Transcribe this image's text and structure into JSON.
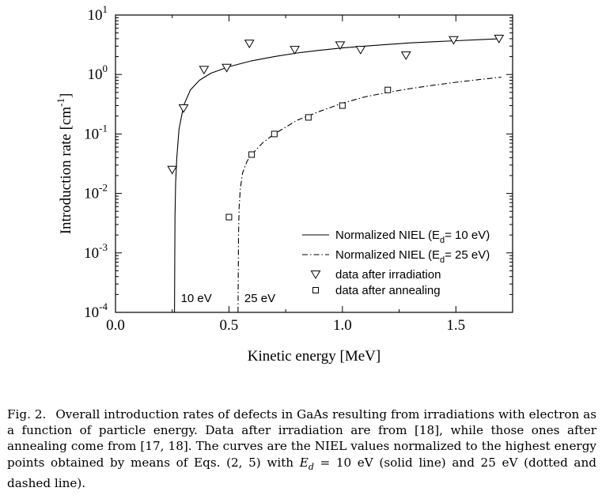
{
  "chart_data": {
    "type": "scatter",
    "xlabel": "Kinetic energy [MeV]",
    "ylabel": "Introduction rate [cm",
    "ylabel_sup": "-1",
    "ylabel_end": "]",
    "xlim": [
      0.0,
      1.75
    ],
    "ylim": [
      0.0001,
      10
    ],
    "yscale": "log",
    "grid": false,
    "legend_position": "bottom-right",
    "x_ticks": [
      {
        "value": 0.0,
        "label": "0.0"
      },
      {
        "value": 0.5,
        "label": "0.5"
      },
      {
        "value": 1.0,
        "label": "1.0"
      },
      {
        "value": 1.5,
        "label": "1.5"
      }
    ],
    "y_ticks": [
      {
        "value": 10,
        "base": "10",
        "exp": "1"
      },
      {
        "value": 1,
        "base": "10",
        "exp": "0"
      },
      {
        "value": 0.1,
        "base": "10",
        "exp": "-1"
      },
      {
        "value": 0.01,
        "base": "10",
        "exp": "-2"
      },
      {
        "value": 0.001,
        "base": "10",
        "exp": "-3"
      },
      {
        "value": 0.0001,
        "base": "10",
        "exp": "-4"
      }
    ],
    "series": [
      {
        "name": "Normalized NIEL (E",
        "name_sub": "d",
        "name_end": "= 10 eV)",
        "kind": "line",
        "style": "solid",
        "x": [
          0.26,
          0.262,
          0.265,
          0.27,
          0.28,
          0.3,
          0.33,
          0.37,
          0.42,
          0.5,
          0.6,
          0.7,
          0.8,
          0.9,
          1.0,
          1.1,
          1.2,
          1.3,
          1.4,
          1.5,
          1.6,
          1.7
        ],
        "y": [
          0.0001,
          0.004,
          0.015,
          0.04,
          0.12,
          0.3,
          0.55,
          0.8,
          1.05,
          1.35,
          1.7,
          2.0,
          2.3,
          2.55,
          2.8,
          3.0,
          3.2,
          3.4,
          3.55,
          3.7,
          3.85,
          4.0
        ]
      },
      {
        "name": "Normalized NIEL (E",
        "name_sub": "d",
        "name_end": "= 25 eV)",
        "kind": "line",
        "style": "dashdot",
        "x": [
          0.54,
          0.542,
          0.545,
          0.55,
          0.56,
          0.58,
          0.6,
          0.65,
          0.7,
          0.8,
          0.9,
          1.0,
          1.1,
          1.2,
          1.3,
          1.4,
          1.5,
          1.6,
          1.7
        ],
        "y": [
          0.0001,
          0.002,
          0.006,
          0.012,
          0.022,
          0.035,
          0.045,
          0.072,
          0.1,
          0.17,
          0.24,
          0.33,
          0.42,
          0.5,
          0.58,
          0.66,
          0.74,
          0.82,
          0.9
        ]
      },
      {
        "name": "data after irradiation",
        "kind": "marker",
        "marker": "triangle-down",
        "x": [
          0.25,
          0.3,
          0.39,
          0.49,
          0.59,
          0.79,
          0.99,
          1.08,
          1.28,
          1.49,
          1.69
        ],
        "y": [
          0.025,
          0.27,
          1.2,
          1.3,
          3.3,
          2.6,
          3.1,
          2.6,
          2.1,
          3.8,
          4.0
        ]
      },
      {
        "name": "data after annealing",
        "kind": "marker",
        "marker": "square",
        "x": [
          0.5,
          0.6,
          0.7,
          0.85,
          1.0,
          1.2
        ],
        "y": [
          0.004,
          0.045,
          0.1,
          0.19,
          0.3,
          0.55
        ]
      }
    ],
    "annotations": [
      {
        "text": "10 eV",
        "x": 0.26
      },
      {
        "text": "25 eV",
        "x": 0.54
      }
    ]
  },
  "caption": {
    "label": "Fig. 2.",
    "text_part1": "Overall introduction rates of defects in GaAs resulting from irradiations with electron as a function of particle energy. Data after irradiation are from [18], while those ones after annealing come from [17, 18]. The curves are the NIEL values normalized to the highest energy points obtained by means of Eqs. (2, 5) with ",
    "ed_symbol": "E",
    "ed_sub": "d",
    "text_part2": " = 10 eV (solid line) and 25 eV (dotted and dashed line)."
  }
}
